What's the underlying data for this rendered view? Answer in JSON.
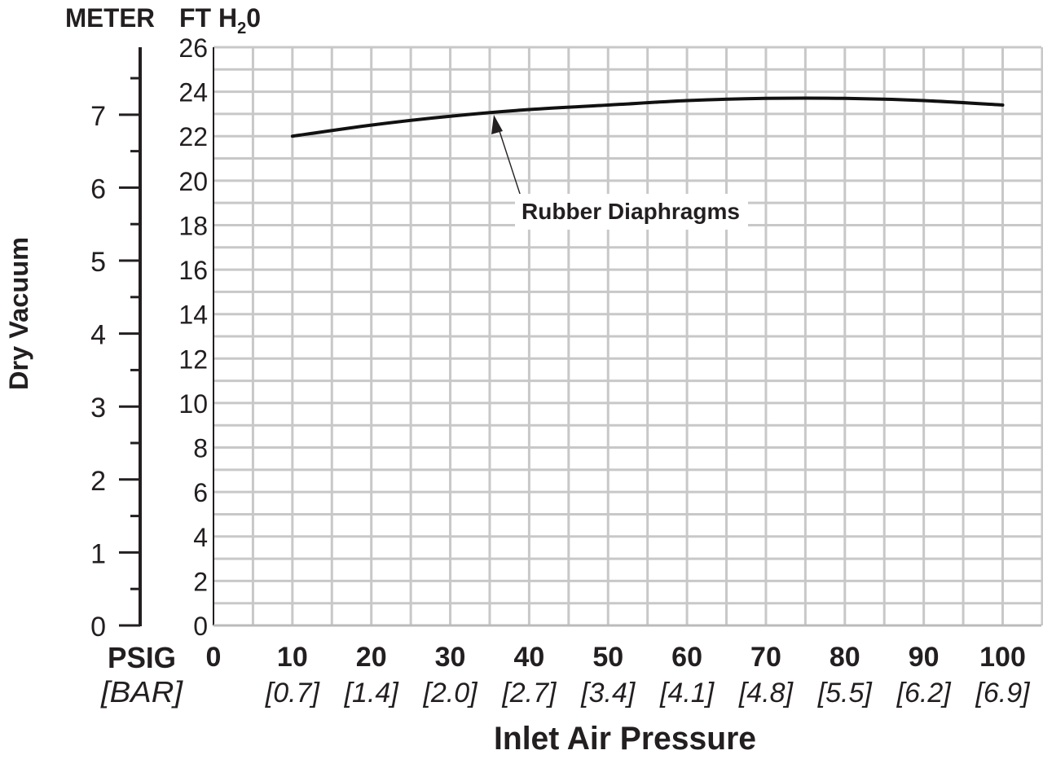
{
  "chart_data": {
    "type": "line",
    "xlabel": "Inlet Air Pressure",
    "ylabel": "Dry Vacuum",
    "x_unit_label": "PSIG",
    "x_alt_unit_label": "[BAR]",
    "y_unit_label_left": "METER",
    "y_unit_label_right_main": "FT H",
    "y_unit_label_right_sub": "2",
    "y_unit_label_right_tail": "0",
    "xlim": [
      0,
      105
    ],
    "ylim_ft": [
      0,
      26
    ],
    "ylim_m": [
      0,
      7.92
    ],
    "x_ticks": [
      {
        "value": 0,
        "label": "0",
        "alt": ""
      },
      {
        "value": 10,
        "label": "10",
        "alt": "[0.7]"
      },
      {
        "value": 20,
        "label": "20",
        "alt": "[1.4]"
      },
      {
        "value": 30,
        "label": "30",
        "alt": "[2.0]"
      },
      {
        "value": 40,
        "label": "40",
        "alt": "[2.7]"
      },
      {
        "value": 50,
        "label": "50",
        "alt": "[3.4]"
      },
      {
        "value": 60,
        "label": "60",
        "alt": "[4.1]"
      },
      {
        "value": 70,
        "label": "70",
        "alt": "[4.8]"
      },
      {
        "value": 80,
        "label": "80",
        "alt": "[5.5]"
      },
      {
        "value": 90,
        "label": "90",
        "alt": "[6.2]"
      },
      {
        "value": 100,
        "label": "100",
        "alt": "[6.9]"
      }
    ],
    "y_ticks_ft": [
      "0",
      "2",
      "4",
      "6",
      "8",
      "10",
      "12",
      "14",
      "16",
      "18",
      "20",
      "22",
      "24",
      "26"
    ],
    "y_ticks_m": [
      "0",
      "1",
      "2",
      "3",
      "4",
      "5",
      "6",
      "7"
    ],
    "grid": true,
    "series": [
      {
        "name": "Rubber Diaphragms",
        "x": [
          10,
          20,
          30,
          40,
          50,
          60,
          70,
          80,
          90,
          100
        ],
        "y": [
          22.0,
          22.5,
          22.9,
          23.2,
          23.4,
          23.6,
          23.7,
          23.7,
          23.6,
          23.4
        ]
      }
    ],
    "annotations": [
      {
        "text": "Rubber Diaphragms",
        "x": 35,
        "y": 23.0
      }
    ]
  }
}
